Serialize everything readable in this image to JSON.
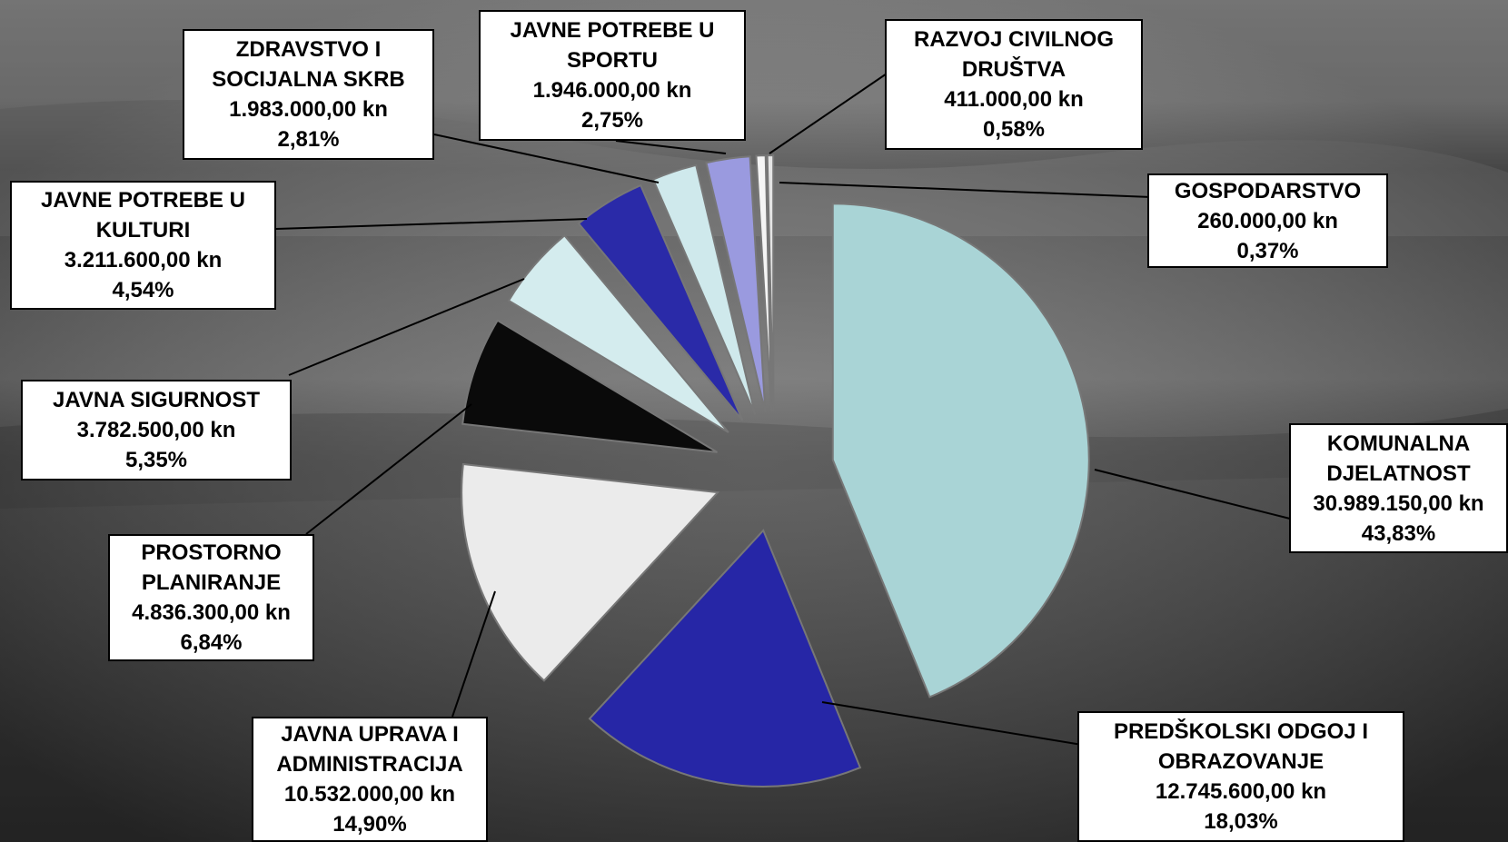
{
  "chart_data": {
    "type": "pie",
    "categories": [
      "KOMUNALNA DJELATNOST",
      "PREDŠKOLSKI ODGOJ I OBRAZOVANJE",
      "JAVNA UPRAVA I ADMINISTRACIJA",
      "PROSTORNO PLANIRANJE",
      "JAVNA SIGURNOST",
      "JAVNE POTREBE U KULTURI",
      "ZDRAVSTVO I SOCIJALNA SKRB",
      "JAVNE POTREBE U SPORTU",
      "RAZVOJ CIVILNOG DRUŠTVA",
      "GOSPODARSTVO"
    ],
    "values": [
      43.83,
      18.03,
      14.9,
      6.84,
      5.35,
      4.54,
      2.81,
      2.75,
      0.58,
      0.37
    ],
    "value_labels": [
      "43,83%",
      "18,03%",
      "14,90%",
      "6,84%",
      "5,35%",
      "4,54%",
      "2,81%",
      "2,75%",
      "0,58%",
      "0,37%"
    ],
    "amount_labels": [
      "30.989.150,00 kn",
      "12.745.600,00 kn",
      "10.532.000,00 kn",
      "4.836.300,00 kn",
      "3.782.500,00 kn",
      "3.211.600,00 kn",
      "1.983.000,00 kn",
      "1.946.000,00 kn",
      "411.000,00 kn",
      "260.000,00 kn"
    ],
    "colors": [
      "#a9d4d6",
      "#2626a6",
      "#ebebeb",
      "#0a0a0a",
      "#d4ecee",
      "#2a2aa8",
      "#cfe9ec",
      "#9a9adf",
      "#f5f5f5",
      "#e4e4e4"
    ]
  }
}
